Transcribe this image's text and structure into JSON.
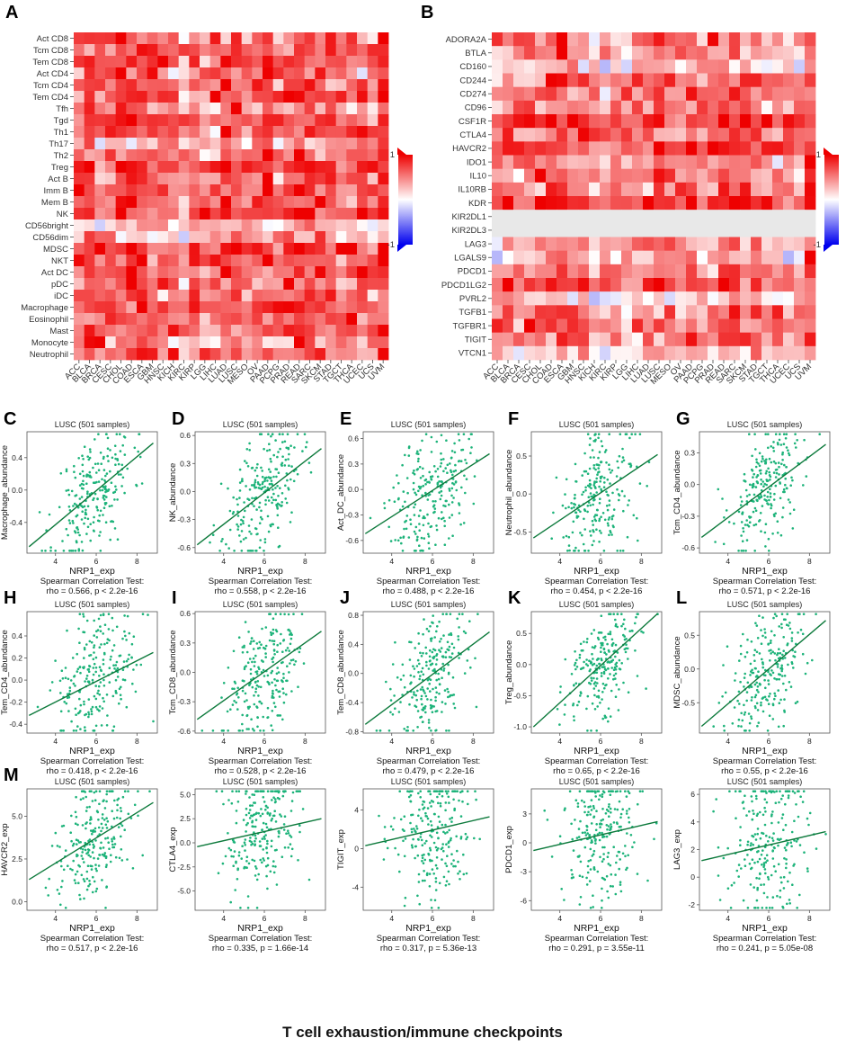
{
  "colors": {
    "positive": "#ee0000",
    "negative": "#0000ee",
    "zero": "#ffffff",
    "point": "#1db37a",
    "line": "#0d7a3c",
    "na": "#e8e8e8"
  },
  "caption": "T cell exhaustion/immune checkpoints",
  "chart_data": [
    {
      "type": "heatmap",
      "label": "A",
      "rows": [
        "Act CD8",
        "Tcm CD8",
        "Tem CD8",
        "Act CD4",
        "Tcm CD4",
        "Tem CD4",
        "Tfh",
        "Tgd",
        "Th1",
        "Th17",
        "Th2",
        "Treg",
        "Act B",
        "Imm B",
        "Mem B",
        "NK",
        "CD56bright",
        "CD56dim",
        "MDSC",
        "NKT",
        "Act DC",
        "pDC",
        "iDC",
        "Macrophage",
        "Eosinophil",
        "Mast",
        "Monocyte",
        "Neutrophil"
      ],
      "columns": [
        "ACC",
        "BLCA",
        "BRCA",
        "CESC",
        "CHOL",
        "COAD",
        "ESCA",
        "GBM",
        "HNSC",
        "KICH",
        "KIRC",
        "KIRP",
        "LGG",
        "LIHC",
        "LUAD",
        "LUSC",
        "MESO",
        "OV",
        "PAAD",
        "PCPG",
        "PRAD",
        "READ",
        "SARC",
        "SKCM",
        "STAD",
        "TGCT",
        "THCA",
        "UCEC",
        "UCS",
        "UVM"
      ],
      "color_range": [
        -1,
        1
      ],
      "legend_ticks": [
        "1",
        "-1"
      ],
      "row_bias": [
        0.35,
        0.45,
        0.5,
        0.35,
        0.5,
        0.5,
        0.35,
        0.4,
        0.45,
        0.15,
        0.35,
        0.6,
        0.45,
        0.4,
        0.4,
        0.55,
        0.0,
        0.1,
        0.6,
        0.5,
        0.55,
        0.4,
        0.45,
        0.5,
        0.5,
        0.45,
        0.25,
        0.4
      ],
      "column_bias": [
        0.1,
        0.25,
        0.1,
        0.15,
        0.15,
        0.35,
        0.35,
        0.2,
        0.25,
        0.15,
        -0.05,
        0.1,
        0.0,
        0.15,
        0.25,
        0.3,
        0.15,
        0.15,
        0.25,
        0.1,
        0.2,
        0.35,
        0.25,
        0.2,
        0.25,
        0.05,
        0.15,
        0.15,
        0.1,
        0.35
      ]
    },
    {
      "type": "heatmap",
      "label": "B",
      "rows": [
        "ADORA2A",
        "BTLA",
        "CD160",
        "CD244",
        "CD274",
        "CD96",
        "CSF1R",
        "CTLA4",
        "HAVCR2",
        "IDO1",
        "IL10",
        "IL10RB",
        "KDR",
        "KIR2DL1",
        "KIR2DL3",
        "LAG3",
        "LGALS9",
        "PDCD1",
        "PDCD1LG2",
        "PVRL2",
        "TGFB1",
        "TGFBR1",
        "TIGIT",
        "VTCN1"
      ],
      "columns": [
        "ACC",
        "BLCA",
        "BRCA",
        "CESC",
        "CHOL",
        "COAD",
        "ESCA",
        "GBM",
        "HNSC",
        "KICH",
        "KIRC",
        "KIRP",
        "LGG",
        "LIHC",
        "LUAD",
        "LUSC",
        "MESO",
        "OV",
        "PAAD",
        "PCPG",
        "PRAD",
        "READ",
        "SARC",
        "SKCM",
        "STAD",
        "TGCT",
        "THCA",
        "UCEC",
        "UCS",
        "UVM"
      ],
      "color_range": [
        -1,
        1
      ],
      "legend_ticks": [
        "1",
        "-1"
      ],
      "row_bias": [
        0.35,
        0.3,
        0.05,
        0.3,
        0.35,
        0.35,
        0.55,
        0.35,
        0.55,
        0.3,
        0.35,
        0.3,
        0.55,
        0.0,
        0.0,
        0.25,
        0.1,
        0.35,
        0.5,
        0.0,
        0.4,
        0.35,
        0.35,
        0.05
      ],
      "column_bias": [
        0.1,
        0.25,
        0.15,
        0.15,
        0.15,
        0.3,
        0.3,
        0.2,
        0.25,
        0.1,
        0.0,
        0.1,
        0.0,
        0.15,
        0.25,
        0.3,
        0.15,
        0.1,
        0.25,
        0.1,
        0.2,
        0.3,
        0.25,
        0.15,
        0.25,
        0.0,
        0.15,
        0.15,
        0.1,
        0.35
      ],
      "neutral_rows": [
        "KIR2DL1",
        "KIR2DL3"
      ]
    },
    {
      "type": "scatter",
      "label": "C",
      "title": "LUSC (501 samples)",
      "xlabel": "NRP1_exp",
      "ylabel": "Macrophage_abundance",
      "stat_line1": "Spearman Correlation Test:",
      "stat_line2": "rho = 0.566, p < 2.2e-16",
      "xlim": [
        2.6,
        9.0
      ],
      "ylim": [
        -0.78,
        0.72
      ],
      "xticks": [
        4,
        6,
        8
      ],
      "yticks": [
        "0.4",
        "0.0",
        "-0.4"
      ],
      "ytick_values": [
        0.4,
        0.0,
        -0.4
      ],
      "rho": 0.566,
      "fit": {
        "x": [
          2.7,
          8.8
        ],
        "y": [
          -0.7,
          0.58
        ]
      },
      "seed": 11
    },
    {
      "type": "scatter",
      "label": "D",
      "title": "LUSC (501 samples)",
      "xlabel": "NRP1_exp",
      "ylabel": "NK_abundance",
      "stat_line1": "Spearman Correlation Test:",
      "stat_line2": "rho = 0.558, p < 2.2e-16",
      "xlim": [
        2.6,
        9.0
      ],
      "ylim": [
        -0.66,
        0.64
      ],
      "xticks": [
        4,
        6,
        8
      ],
      "yticks": [
        "0.6",
        "0.3",
        "0.0",
        "-0.3",
        "-0.6"
      ],
      "ytick_values": [
        0.6,
        0.3,
        0.0,
        -0.3,
        -0.6
      ],
      "rho": 0.558,
      "fit": {
        "x": [
          2.7,
          8.8
        ],
        "y": [
          -0.57,
          0.46
        ]
      },
      "seed": 23
    },
    {
      "type": "scatter",
      "label": "E",
      "title": "LUSC (501 samples)",
      "xlabel": "NRP1_exp",
      "ylabel": "Act_DC_abundance",
      "stat_line1": "Spearman Correlation Test:",
      "stat_line2": "rho = 0.488, p < 2.2e-16",
      "xlim": [
        2.6,
        9.0
      ],
      "ylim": [
        -0.75,
        0.68
      ],
      "xticks": [
        4,
        6,
        8
      ],
      "yticks": [
        "0.6",
        "0.3",
        "0.0",
        "-0.3",
        "-0.6"
      ],
      "ytick_values": [
        0.6,
        0.3,
        0.0,
        -0.3,
        -0.6
      ],
      "rho": 0.488,
      "fit": {
        "x": [
          2.7,
          8.8
        ],
        "y": [
          -0.52,
          0.42
        ]
      },
      "seed": 37
    },
    {
      "type": "scatter",
      "label": "F",
      "title": "LUSC (501 samples)",
      "xlabel": "NRP1_exp",
      "ylabel": "Neutrophil_abundance",
      "stat_line1": "Spearman Correlation Test:",
      "stat_line2": "rho = 0.454, p < 2.2e-16",
      "xlim": [
        2.6,
        9.0
      ],
      "ylim": [
        -0.78,
        0.82
      ],
      "xticks": [
        4,
        6,
        8
      ],
      "yticks": [
        "0.5",
        "0.0",
        "-0.5"
      ],
      "ytick_values": [
        0.5,
        0.0,
        -0.5
      ],
      "rho": 0.454,
      "fit": {
        "x": [
          2.7,
          8.8
        ],
        "y": [
          -0.58,
          0.52
        ]
      },
      "seed": 41
    },
    {
      "type": "scatter",
      "label": "G",
      "title": "LUSC (501 samples)",
      "xlabel": "NRP1_exp",
      "ylabel": "Tcm_CD4_abundance",
      "stat_line1": "Spearman Correlation Test:",
      "stat_line2": "rho = 0.571, p < 2.2e-16",
      "xlim": [
        2.6,
        9.0
      ],
      "ylim": [
        -0.65,
        0.5
      ],
      "xticks": [
        4,
        6,
        8
      ],
      "yticks": [
        "0.3",
        "0.0",
        "-0.3",
        "-0.6"
      ],
      "ytick_values": [
        0.3,
        0.0,
        -0.3,
        -0.6
      ],
      "rho": 0.571,
      "fit": {
        "x": [
          2.7,
          8.8
        ],
        "y": [
          -0.5,
          0.38
        ]
      },
      "seed": 53
    },
    {
      "type": "scatter",
      "label": "H",
      "title": "LUSC (501 samples)",
      "xlabel": "NRP1_exp",
      "ylabel": "Tem_CD4_abundance",
      "stat_line1": "Spearman Correlation Test:",
      "stat_line2": "rho = 0.418, p < 2.2e-16",
      "xlim": [
        2.6,
        9.0
      ],
      "ylim": [
        -0.48,
        0.62
      ],
      "xticks": [
        4,
        6,
        8
      ],
      "yticks": [
        "0.4",
        "0.2",
        "0.0",
        "-0.2",
        "-0.4"
      ],
      "ytick_values": [
        0.4,
        0.2,
        0.0,
        -0.2,
        -0.4
      ],
      "rho": 0.418,
      "fit": {
        "x": [
          2.7,
          8.8
        ],
        "y": [
          -0.32,
          0.25
        ]
      },
      "seed": 67
    },
    {
      "type": "scatter",
      "label": "I",
      "title": "LUSC (501 samples)",
      "xlabel": "NRP1_exp",
      "ylabel": "Tcm_CD8_abundance",
      "stat_line1": "Spearman Correlation Test:",
      "stat_line2": "rho = 0.528, p < 2.2e-16",
      "xlim": [
        2.6,
        9.0
      ],
      "ylim": [
        -0.62,
        0.62
      ],
      "xticks": [
        4,
        6,
        8
      ],
      "yticks": [
        "0.6",
        "0.3",
        "0.0",
        "-0.3",
        "-0.6"
      ],
      "ytick_values": [
        0.6,
        0.3,
        0.0,
        -0.3,
        -0.6
      ],
      "rho": 0.528,
      "fit": {
        "x": [
          2.7,
          8.8
        ],
        "y": [
          -0.48,
          0.42
        ]
      },
      "seed": 79
    },
    {
      "type": "scatter",
      "label": "J",
      "title": "LUSC (501 samples)",
      "xlabel": "NRP1_exp",
      "ylabel": "Tem_CD8_abundance",
      "stat_line1": "Spearman Correlation Test:",
      "stat_line2": "rho = 0.479, p < 2.2e-16",
      "xlim": [
        2.6,
        9.0
      ],
      "ylim": [
        -0.82,
        0.85
      ],
      "xticks": [
        4,
        6,
        8
      ],
      "yticks": [
        "0.8",
        "0.4",
        "0.0",
        "-0.4",
        "-0.8"
      ],
      "ytick_values": [
        0.8,
        0.4,
        0.0,
        -0.4,
        -0.8
      ],
      "rho": 0.479,
      "fit": {
        "x": [
          2.7,
          8.8
        ],
        "y": [
          -0.7,
          0.57
        ]
      },
      "seed": 83
    },
    {
      "type": "scatter",
      "label": "K",
      "title": "LUSC (501 samples)",
      "xlabel": "NRP1_exp",
      "ylabel": "Treg_abundance",
      "stat_line1": "Spearman Correlation Test:",
      "stat_line2": "rho = 0.65, p < 2.2e-16",
      "xlim": [
        2.6,
        9.0
      ],
      "ylim": [
        -1.1,
        0.85
      ],
      "xticks": [
        4,
        6,
        8
      ],
      "yticks": [
        "0.5",
        "0.0",
        "-0.5",
        "-1.0"
      ],
      "ytick_values": [
        0.5,
        0.0,
        -0.5,
        -1.0
      ],
      "rho": 0.65,
      "fit": {
        "x": [
          2.7,
          8.8
        ],
        "y": [
          -1.0,
          0.82
        ]
      },
      "seed": 97
    },
    {
      "type": "scatter",
      "label": "L",
      "title": "LUSC (501 samples)",
      "xlabel": "NRP1_exp",
      "ylabel": "MDSC_abundance",
      "stat_line1": "Spearman Correlation Test:",
      "stat_line2": "rho = 0.55, p < 2.2e-16",
      "xlim": [
        2.6,
        9.0
      ],
      "ylim": [
        -0.95,
        0.85
      ],
      "xticks": [
        4,
        6,
        8
      ],
      "yticks": [
        "0.5",
        "0.0",
        "-0.5"
      ],
      "ytick_values": [
        0.5,
        0.0,
        -0.5
      ],
      "rho": 0.55,
      "fit": {
        "x": [
          2.7,
          8.8
        ],
        "y": [
          -0.85,
          0.72
        ]
      },
      "seed": 101
    },
    {
      "type": "scatter",
      "label": "M",
      "title": "LUSC (501 samples)",
      "xlabel": "NRP1_exp",
      "ylabel": "HAVCR2_exp",
      "stat_line1": "Spearman Correlation Test:",
      "stat_line2": "rho = 0.517, p < 2.2e-16",
      "xlim": [
        2.6,
        9.0
      ],
      "ylim": [
        -0.5,
        6.6
      ],
      "xticks": [
        4,
        6,
        8
      ],
      "yticks": [
        "5.0",
        "2.5",
        "0.0"
      ],
      "ytick_values": [
        5.0,
        2.5,
        0.0
      ],
      "rho": 0.517,
      "fit": {
        "x": [
          2.7,
          8.8
        ],
        "y": [
          1.3,
          5.8
        ]
      },
      "seed": 113
    },
    {
      "type": "scatter",
      "label": "",
      "title": "LUSC (501 samples)",
      "xlabel": "NRP1_exp",
      "ylabel": "CTLA4_exp",
      "stat_line1": "Spearman Correlation Test:",
      "stat_line2": "rho = 0.335, p = 1.66e-14",
      "xlim": [
        2.6,
        9.0
      ],
      "ylim": [
        -7.0,
        5.6
      ],
      "xticks": [
        4,
        6,
        8
      ],
      "yticks": [
        "5.0",
        "2.5",
        "0.0",
        "-2.5",
        "-5.0"
      ],
      "ytick_values": [
        5.0,
        2.5,
        0.0,
        -2.5,
        -5.0
      ],
      "rho": 0.335,
      "fit": {
        "x": [
          2.7,
          8.8
        ],
        "y": [
          -0.4,
          2.5
        ]
      },
      "seed": 127
    },
    {
      "type": "scatter",
      "label": "",
      "title": "LUSC (501 samples)",
      "xlabel": "NRP1_exp",
      "ylabel": "TIGIT_exp",
      "stat_line1": "Spearman Correlation Test:",
      "stat_line2": "rho = 0.317, p = 5.36e-13",
      "xlim": [
        2.6,
        9.0
      ],
      "ylim": [
        -6.4,
        6.2
      ],
      "xticks": [
        4,
        6,
        8
      ],
      "yticks": [
        "4",
        "0",
        "-4"
      ],
      "ytick_values": [
        4,
        0,
        -4
      ],
      "rho": 0.317,
      "fit": {
        "x": [
          2.7,
          8.8
        ],
        "y": [
          0.3,
          3.3
        ]
      },
      "seed": 131
    },
    {
      "type": "scatter",
      "label": "",
      "title": "LUSC (501 samples)",
      "xlabel": "NRP1_exp",
      "ylabel": "PDCD1_exp",
      "stat_line1": "Spearman Correlation Test:",
      "stat_line2": "rho = 0.291, p = 3.55e-11",
      "xlim": [
        2.6,
        9.0
      ],
      "ylim": [
        -7.0,
        5.6
      ],
      "xticks": [
        4,
        6,
        8
      ],
      "yticks": [
        "3",
        "0",
        "-3",
        "-6"
      ],
      "ytick_values": [
        3,
        0,
        -3,
        -6
      ],
      "rho": 0.291,
      "fit": {
        "x": [
          2.7,
          8.8
        ],
        "y": [
          -0.8,
          2.2
        ]
      },
      "seed": 149
    },
    {
      "type": "scatter",
      "label": "",
      "title": "LUSC (501 samples)",
      "xlabel": "NRP1_exp",
      "ylabel": "LAG3_exp",
      "stat_line1": "Spearman Correlation Test:",
      "stat_line2": "rho = 0.241, p = 5.05e-08",
      "xlim": [
        2.6,
        9.0
      ],
      "ylim": [
        -2.4,
        6.4
      ],
      "xticks": [
        4,
        6,
        8
      ],
      "yticks": [
        "6",
        "4",
        "2",
        "0",
        "-2"
      ],
      "ytick_values": [
        6,
        4,
        2,
        0,
        -2
      ],
      "rho": 0.241,
      "fit": {
        "x": [
          2.7,
          8.8
        ],
        "y": [
          1.2,
          3.3
        ]
      },
      "seed": 151
    }
  ]
}
